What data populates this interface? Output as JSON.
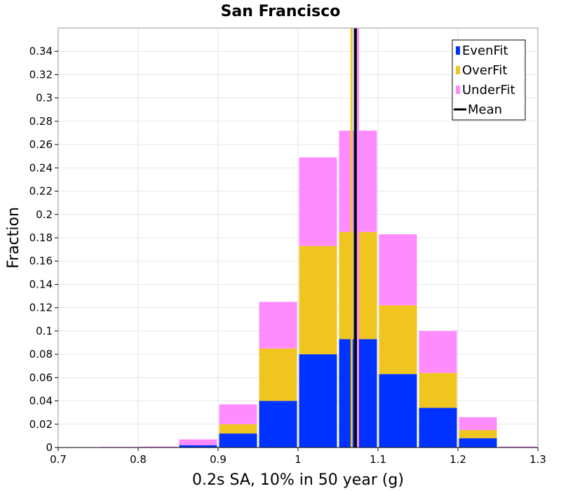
{
  "chart_data": {
    "type": "bar",
    "stacked": true,
    "title": "San Francisco",
    "xlabel": "0.2s SA, 10% in 50 year (g)",
    "ylabel": "Fraction",
    "xlim": [
      0.7,
      1.3
    ],
    "ylim": [
      0,
      0.36
    ],
    "xticks": [
      "0.7",
      "0.8",
      "0.9",
      "1",
      "1.1",
      "1.2",
      "1.3"
    ],
    "xtick_values": [
      0.7,
      0.8,
      0.9,
      1.0,
      1.1,
      1.2,
      1.3
    ],
    "yticks": [
      "0",
      "0.02",
      "0.04",
      "0.06",
      "0.08",
      "0.1",
      "0.12",
      "0.14",
      "0.16",
      "0.18",
      "0.2",
      "0.22",
      "0.24",
      "0.26",
      "0.28",
      "0.3",
      "0.32",
      "0.34"
    ],
    "ytick_values": [
      0,
      0.02,
      0.04,
      0.06,
      0.08,
      0.1,
      0.12,
      0.14,
      0.16,
      0.18,
      0.2,
      0.22,
      0.24,
      0.26,
      0.28,
      0.3,
      0.32,
      0.34
    ],
    "grid": true,
    "legend_position": "top-right",
    "bin_centers": [
      0.725,
      0.775,
      0.825,
      0.875,
      0.925,
      0.975,
      1.025,
      1.075,
      1.125,
      1.175,
      1.225,
      1.275
    ],
    "bin_width": 0.05,
    "series": [
      {
        "name": "EvenFit",
        "color": "#0033ff",
        "values": [
          0.0,
          0.0,
          0.0,
          0.002,
          0.012,
          0.04,
          0.08,
          0.093,
          0.063,
          0.034,
          0.008,
          0.0
        ]
      },
      {
        "name": "OverFit",
        "color": "#f0c520",
        "values": [
          0.0,
          0.0,
          0.0,
          0.0,
          0.008,
          0.045,
          0.093,
          0.092,
          0.059,
          0.03,
          0.007,
          0.0
        ]
      },
      {
        "name": "UnderFit",
        "color": "#ff8cff",
        "values": [
          0.0,
          0.0005,
          0.0008,
          0.005,
          0.017,
          0.04,
          0.076,
          0.087,
          0.061,
          0.036,
          0.011,
          0.0008
        ]
      }
    ],
    "mean": {
      "name": "Mean",
      "x": 1.072,
      "color": "#000000"
    },
    "component_lines": [
      {
        "x": 1.067,
        "color": "#f0c520"
      },
      {
        "x": 1.071,
        "color": "#0033ff"
      },
      {
        "x": 1.075,
        "color": "#ff8cff"
      }
    ]
  }
}
